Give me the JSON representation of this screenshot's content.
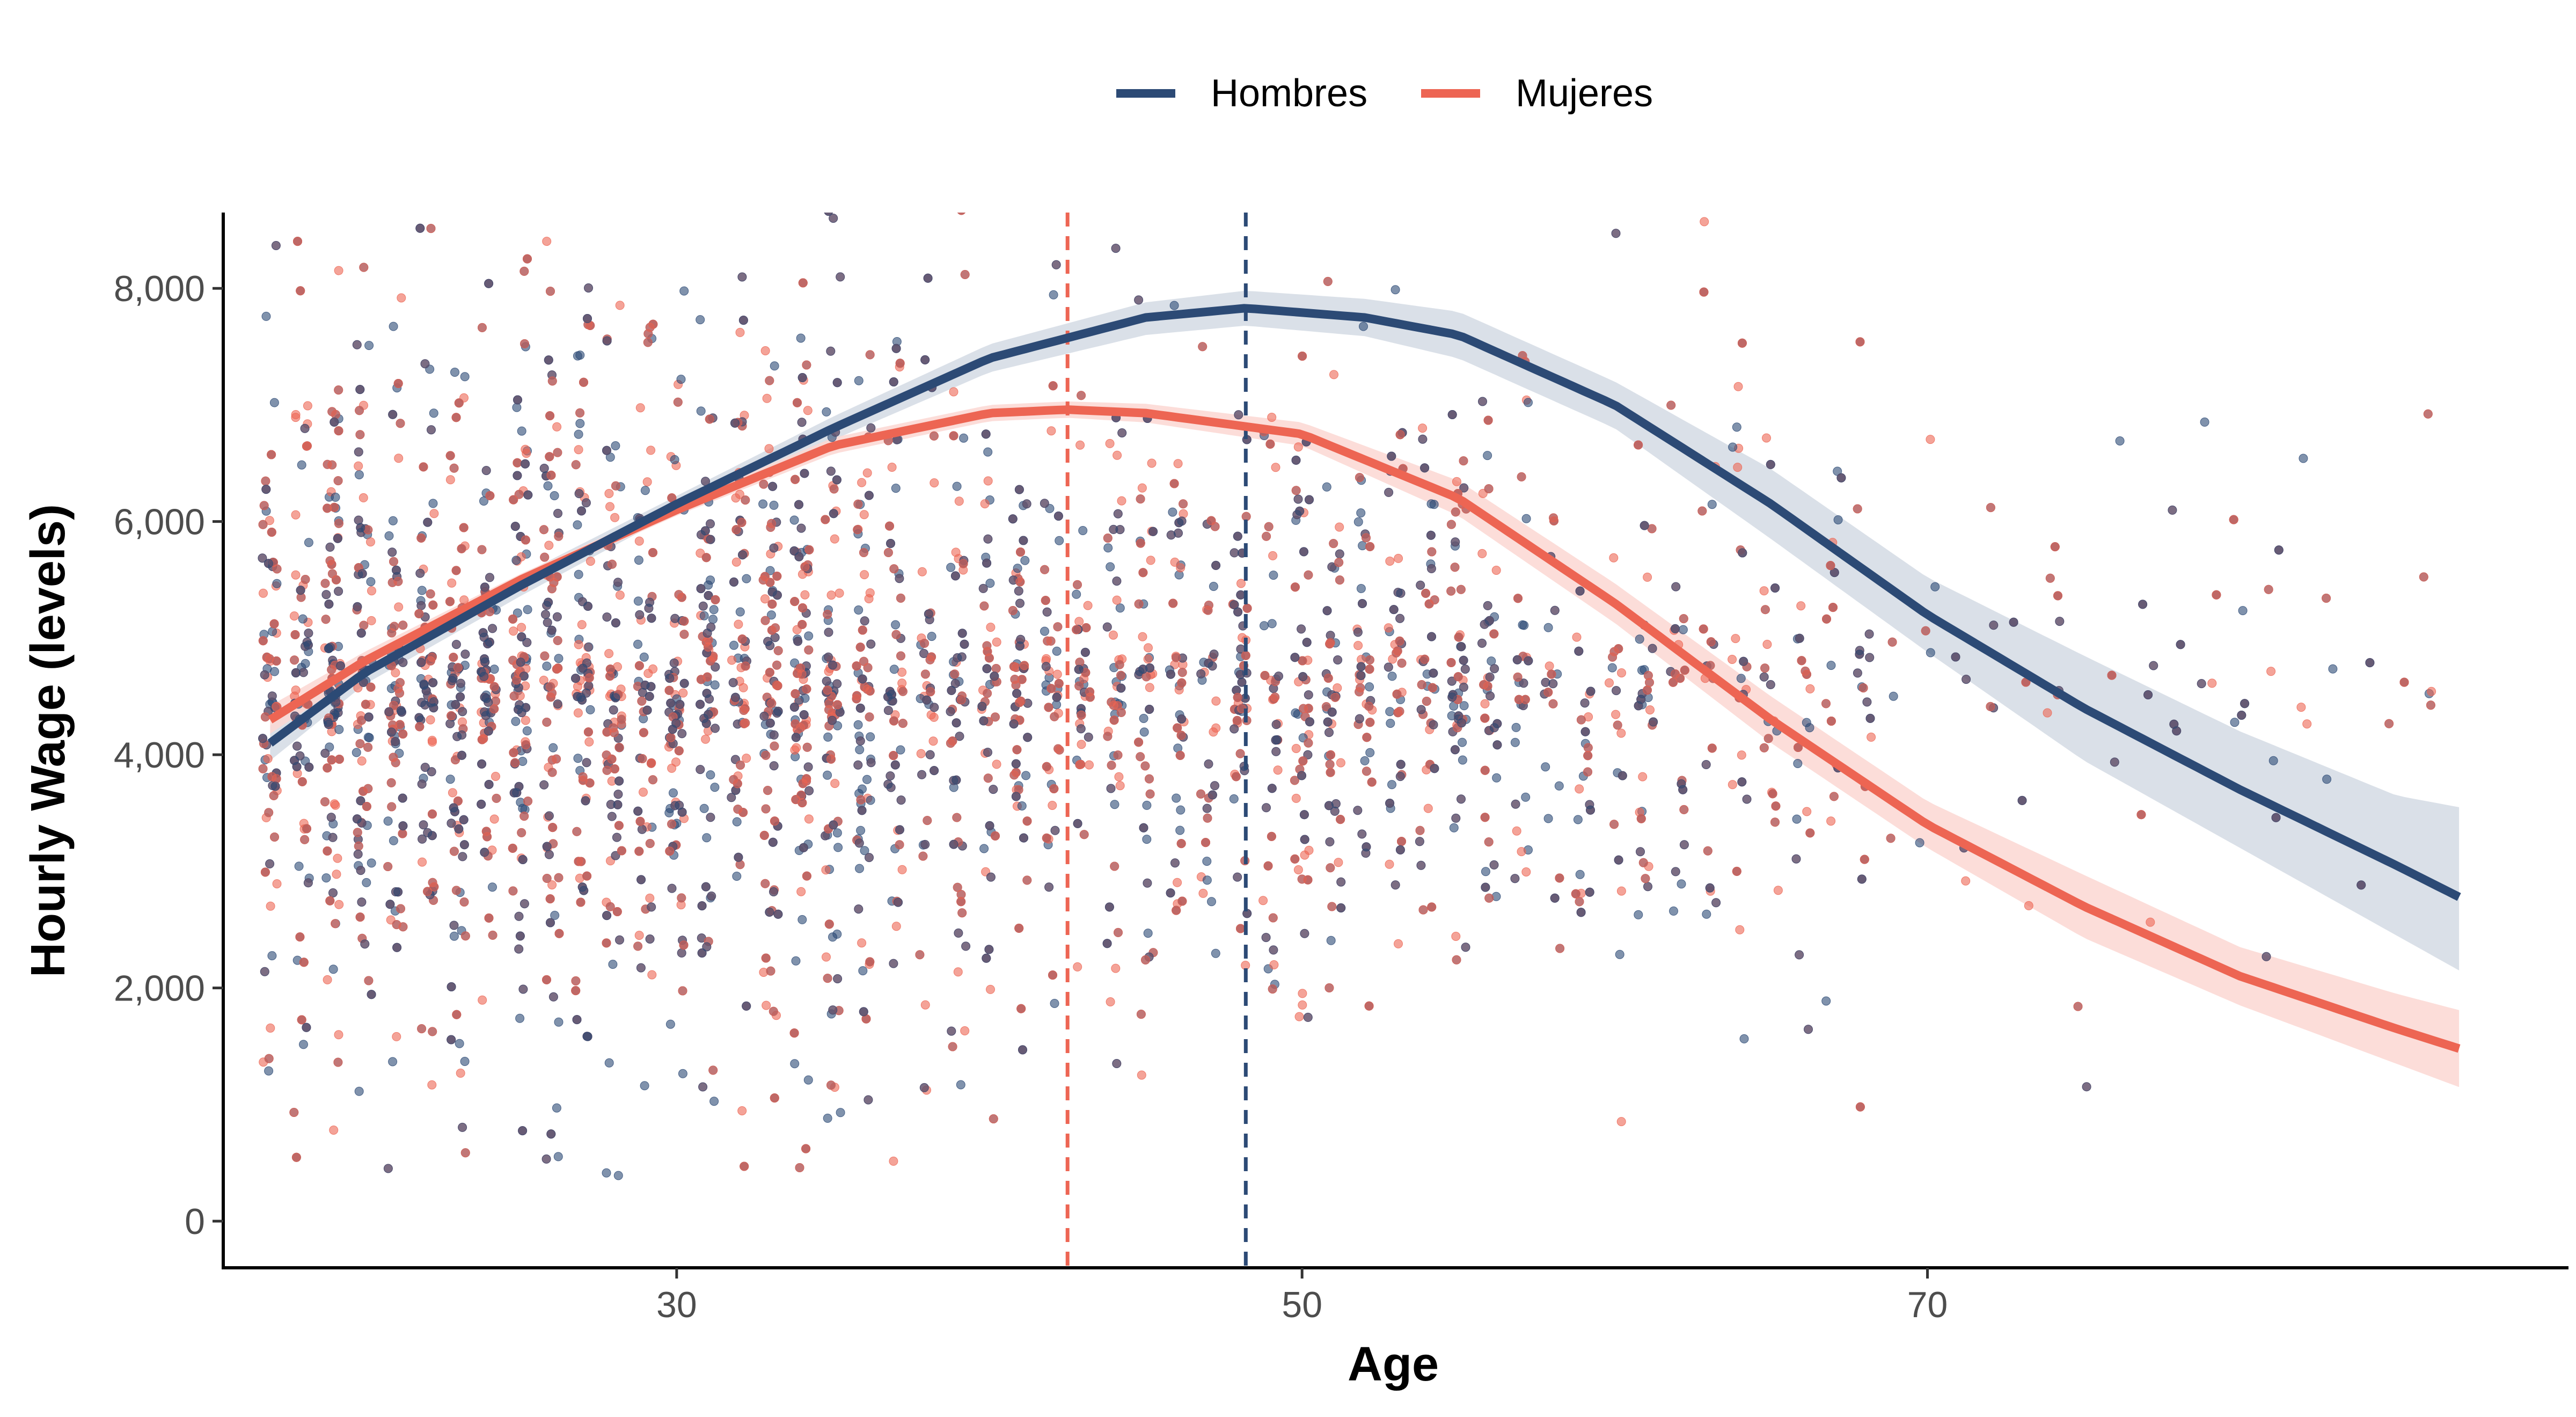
{
  "chart_data": {
    "type": "scatter",
    "xlabel": "Age",
    "ylabel": "Hourly Wage (levels)",
    "xlim": [
      15.5,
      90.5
    ],
    "ylim": [
      -400,
      8650
    ],
    "x_ticks": [
      30,
      50,
      70
    ],
    "x_tick_labels": [
      "30",
      "50",
      "70"
    ],
    "y_ticks": [
      0,
      2000,
      4000,
      6000,
      8000
    ],
    "y_tick_labels": [
      "0",
      "2,000",
      "4,000",
      "6,000",
      "8,000"
    ],
    "legend_position": "top",
    "grid": false,
    "series": [
      {
        "name": "Hombres",
        "color": "#2c4a75",
        "band_color": "#d3dae4",
        "fit": {
          "x": [
            17,
            20,
            25,
            30,
            35,
            40,
            45,
            48.2,
            52,
            55,
            60,
            65,
            70,
            75,
            80,
            85,
            87
          ],
          "y": [
            4100,
            4700,
            5450,
            6150,
            6800,
            7400,
            7750,
            7830,
            7750,
            7600,
            7000,
            6150,
            5200,
            4400,
            3700,
            3050,
            2780
          ],
          "lower": [
            3950,
            4600,
            5360,
            6080,
            6700,
            7280,
            7600,
            7680,
            7590,
            7400,
            6800,
            5850,
            4880,
            3950,
            3200,
            2450,
            2150
          ],
          "upper": [
            4250,
            4800,
            5540,
            6220,
            6900,
            7520,
            7880,
            7980,
            7910,
            7800,
            7200,
            6450,
            5520,
            4850,
            4200,
            3650,
            3550
          ]
        },
        "reference_line_x": 48.2
      },
      {
        "name": "Mujeres",
        "color": "#ed6553",
        "band_color": "#fbd7d2",
        "fit": {
          "x": [
            17,
            20,
            25,
            30,
            35,
            40,
            42.5,
            45,
            50,
            55,
            60,
            65,
            70,
            75,
            80,
            85,
            87
          ],
          "y": [
            4300,
            4800,
            5500,
            6100,
            6650,
            6930,
            6960,
            6930,
            6750,
            6200,
            5300,
            4300,
            3400,
            2700,
            2100,
            1650,
            1480
          ],
          "lower": [
            4180,
            4720,
            5450,
            6050,
            6580,
            6860,
            6890,
            6850,
            6650,
            6050,
            5130,
            4100,
            3200,
            2430,
            1850,
            1350,
            1150
          ],
          "upper": [
            4420,
            4880,
            5550,
            6150,
            6720,
            7000,
            7030,
            7010,
            6850,
            6350,
            5470,
            4500,
            3600,
            2970,
            2350,
            1950,
            1810
          ]
        },
        "reference_line_x": 42.5
      }
    ],
    "scatter_note_color_hombres": "#2c4a75",
    "scatter_note_color_mujeres": "#ed6553"
  }
}
